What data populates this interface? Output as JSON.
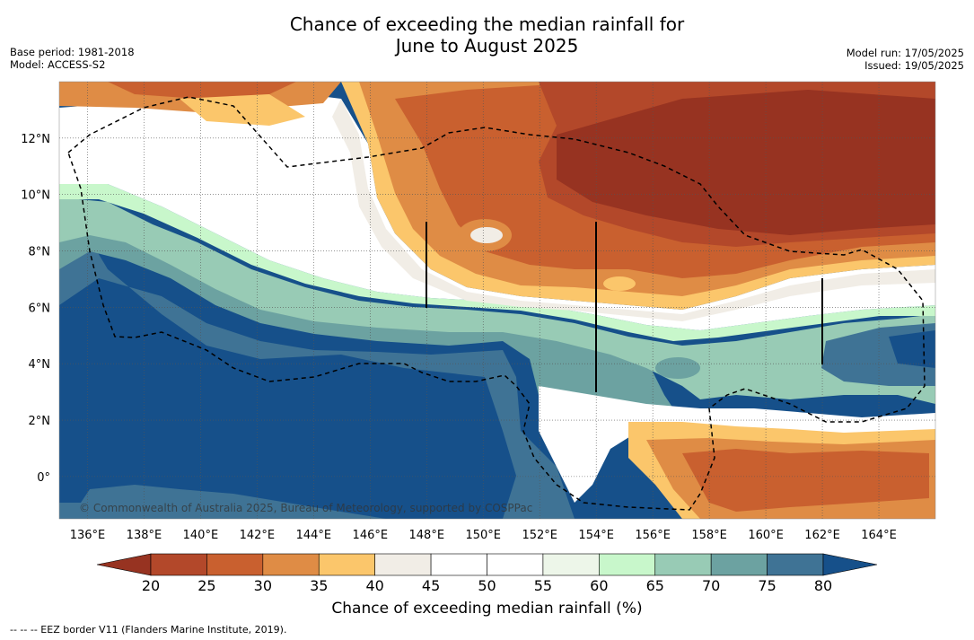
{
  "header": {
    "title_line1": "Chance of exceeding the median rainfall for",
    "title_line2": "June to August 2025",
    "base_period": "Base period: 1981-2018",
    "model": "Model: ACCESS-S2",
    "model_run": "Model run: 17/05/2025",
    "issued": "Issued: 19/05/2025"
  },
  "map": {
    "lon_labels": [
      "136°E",
      "138°E",
      "140°E",
      "142°E",
      "144°E",
      "146°E",
      "148°E",
      "150°E",
      "152°E",
      "154°E",
      "156°E",
      "158°E",
      "160°E",
      "162°E",
      "164°E"
    ],
    "lat_labels": [
      "12°N",
      "10°N",
      "8°N",
      "6°N",
      "4°N",
      "2°N",
      "0°"
    ],
    "lon_values": [
      136,
      138,
      140,
      142,
      144,
      146,
      148,
      150,
      152,
      154,
      156,
      158,
      160,
      162,
      164
    ],
    "lat_values": [
      12,
      10,
      8,
      6,
      4,
      2,
      0
    ],
    "lon_range": [
      135,
      166
    ],
    "lat_range": [
      -1.5,
      14
    ],
    "copyright": "© Commonwealth of Australia 2025, Bureau of Meteorology, supported by COSPPac"
  },
  "colorbar": {
    "ticks": [
      "20",
      "25",
      "30",
      "35",
      "40",
      "45",
      "50",
      "55",
      "60",
      "65",
      "70",
      "75",
      "80"
    ],
    "colors": [
      "#b3482a",
      "#c9602f",
      "#df8c45",
      "#fbc66b",
      "#f1ede6",
      "#ffffff",
      "#ffffff",
      "#edf6e9",
      "#c8f7cb",
      "#98cbb5",
      "#6ca2a1",
      "#3f7395"
    ],
    "under_color": "#973321",
    "over_color": "#16508a",
    "label": "Chance of exceeding median rainfall (%)"
  },
  "footnote": "--  --  -- EEZ border V11 (Flanders Marine Institute, 2019)."
}
